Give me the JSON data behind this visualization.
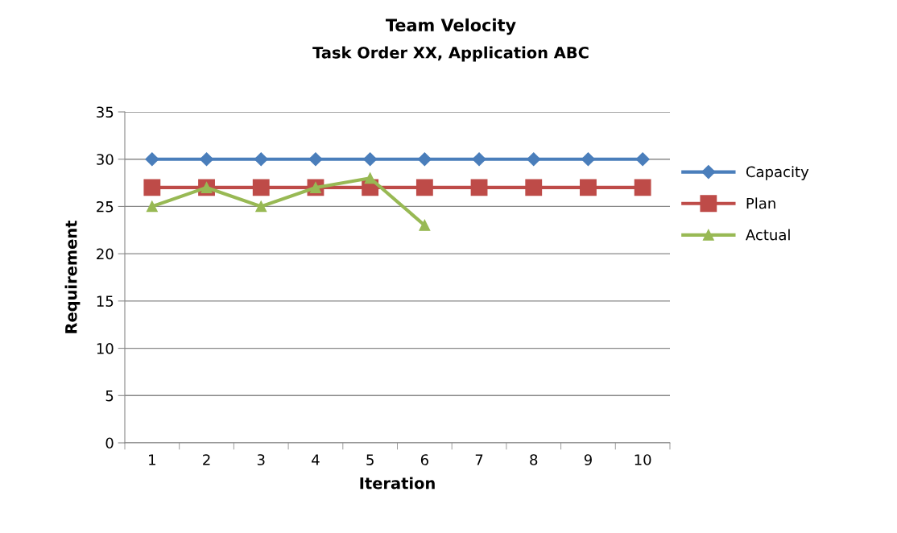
{
  "chart_data": {
    "type": "line",
    "title": "Team Velocity",
    "subtitle": "Task Order XX, Application ABC",
    "xlabel": "Iteration",
    "ylabel": "Requirement",
    "categories": [
      "1",
      "2",
      "3",
      "4",
      "5",
      "6",
      "7",
      "8",
      "9",
      "10"
    ],
    "series": [
      {
        "name": "Capacity",
        "color": "#4a7ebb",
        "marker": "diamond",
        "values": [
          30,
          30,
          30,
          30,
          30,
          30,
          30,
          30,
          30,
          30
        ]
      },
      {
        "name": "Plan",
        "color": "#be4b48",
        "marker": "square",
        "values": [
          27,
          27,
          27,
          27,
          27,
          27,
          27,
          27,
          27,
          27
        ]
      },
      {
        "name": "Actual",
        "color": "#98b954",
        "marker": "triangle",
        "values": [
          25,
          27,
          25,
          27,
          28,
          23,
          null,
          null,
          null,
          null
        ]
      }
    ],
    "ylim": [
      0,
      35
    ],
    "yticks": [
      0,
      5,
      10,
      15,
      20,
      25,
      30,
      35
    ],
    "grid": "y",
    "legend": "right",
    "line_style": "solid"
  }
}
